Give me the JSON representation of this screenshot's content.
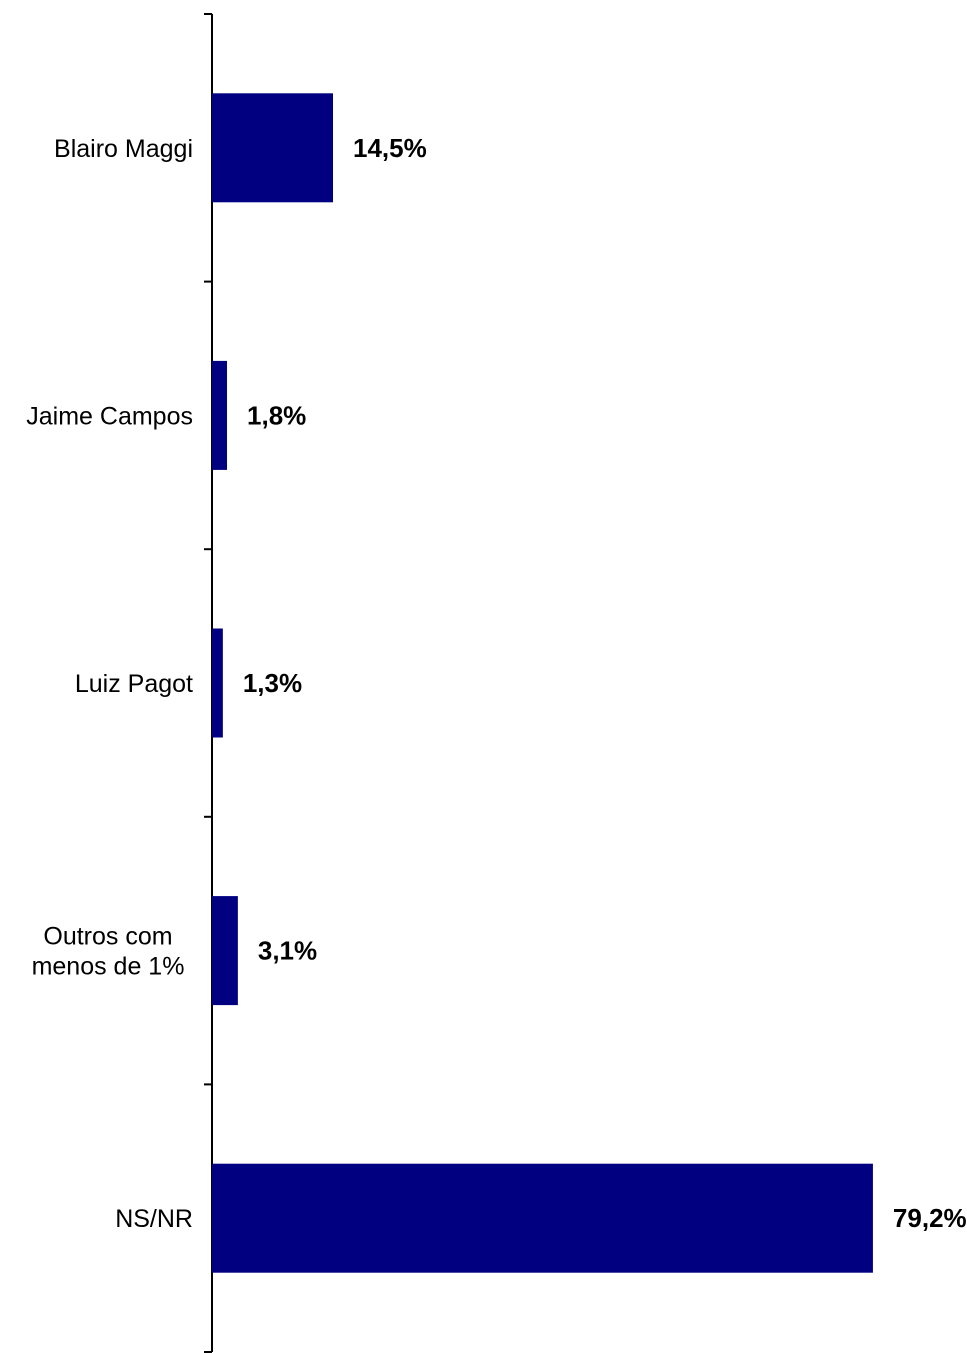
{
  "chart_data": {
    "type": "bar",
    "orientation": "horizontal",
    "categories": [
      "Blairo Maggi",
      "Jaime Campos",
      "Luiz Pagot",
      "Outros com menos de 1%",
      "NS/NR"
    ],
    "category_lines": [
      [
        "Blairo Maggi"
      ],
      [
        "Jaime Campos"
      ],
      [
        "Luiz Pagot"
      ],
      [
        "Outros com",
        "menos de 1%"
      ],
      [
        "NS/NR"
      ]
    ],
    "values": [
      14.5,
      1.8,
      1.3,
      3.1,
      79.2
    ],
    "data_labels": [
      "14,5%",
      "1,8%",
      "1,3%",
      "3,1%",
      "79,2%"
    ],
    "bar_color": "#000080",
    "title": "",
    "xlabel": "",
    "ylabel": "",
    "xlim": [
      0,
      80
    ],
    "grid": false,
    "legend": "none"
  }
}
